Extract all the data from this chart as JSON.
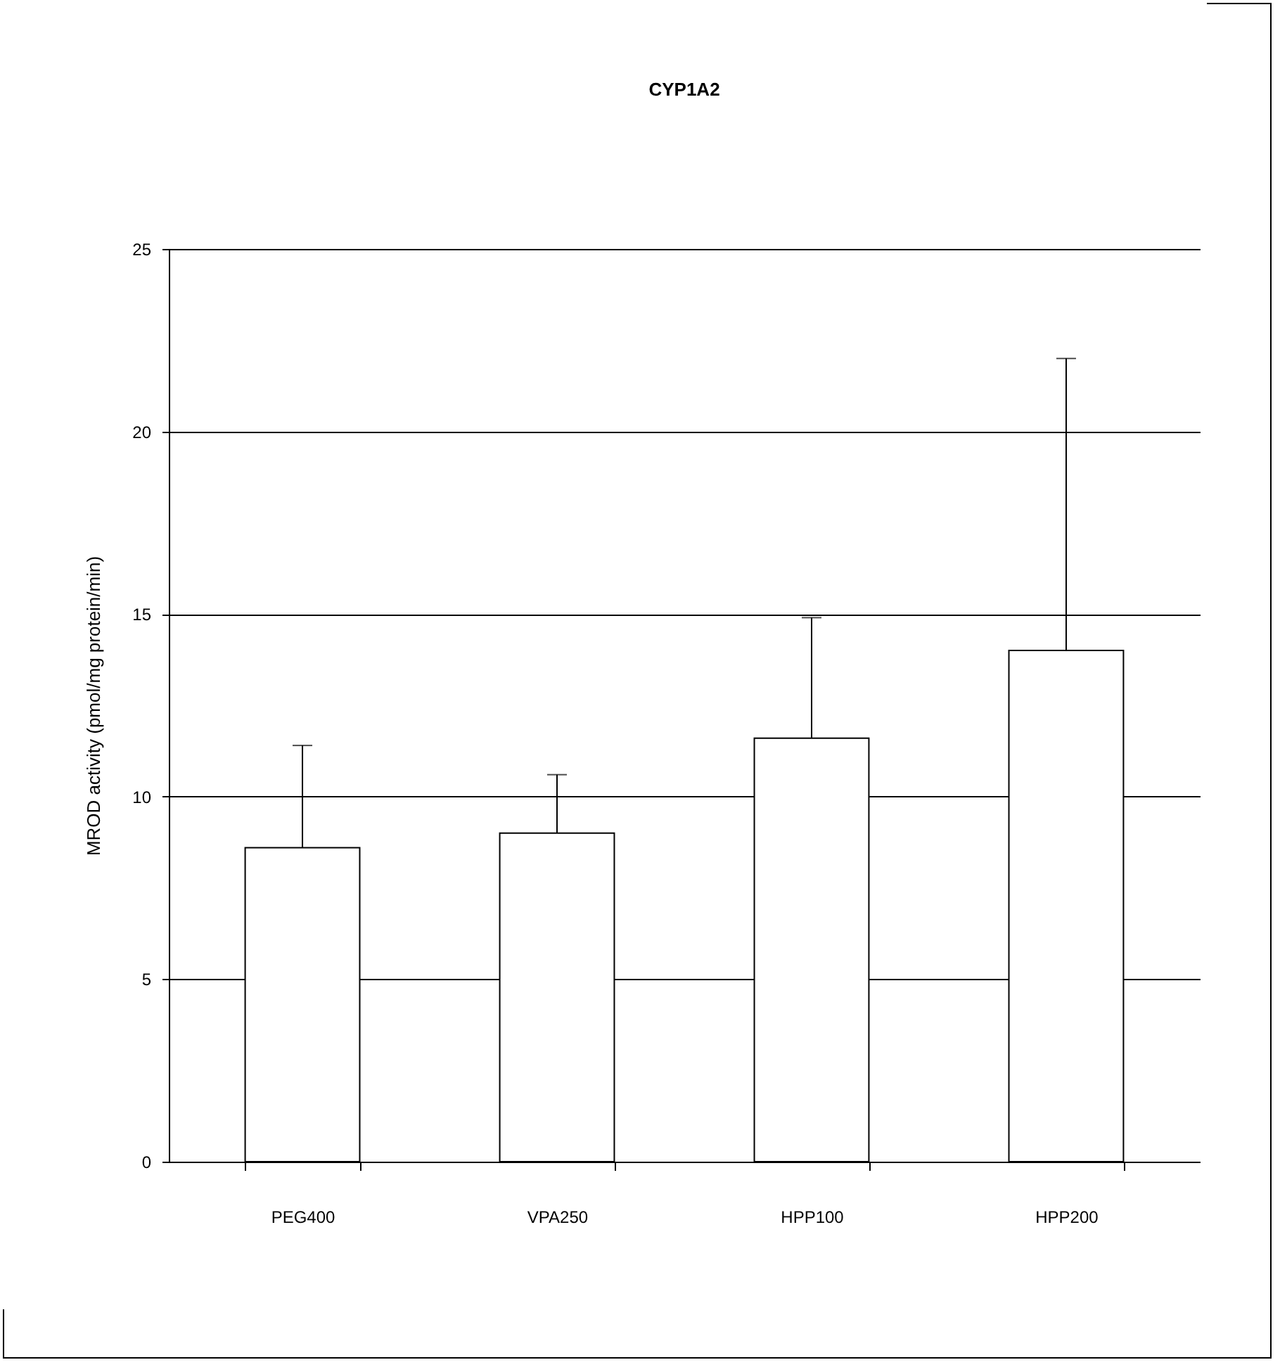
{
  "chart_data": {
    "type": "bar",
    "title": "CYP1A2",
    "ylabel": "MROD activity (pmol/mg protein/min)",
    "categories": [
      "PEG400",
      "VPA250",
      "HPP100",
      "HPP200"
    ],
    "values": [
      8.6,
      9.0,
      11.6,
      14.0
    ],
    "errors": [
      [
        8.6,
        11.4
      ],
      [
        9.0,
        10.6
      ],
      [
        11.6,
        14.9
      ],
      [
        14.0,
        22.0
      ]
    ],
    "color": "#ffffff",
    "ylim": [
      0,
      25
    ],
    "yticks": [
      0,
      5,
      10,
      15,
      20,
      25
    ],
    "grid": "y"
  }
}
